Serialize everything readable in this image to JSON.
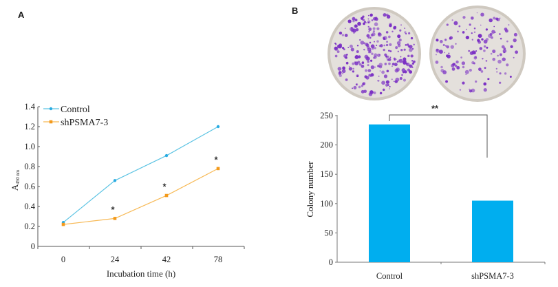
{
  "panels": {
    "a_label": "A",
    "b_label": "B"
  },
  "chart_data": [
    {
      "id": "A",
      "type": "line",
      "title": "",
      "xlabel": "Incubation time (h)",
      "ylabel_main": "A",
      "ylabel_sub": "450 nm",
      "categories": [
        "0",
        "24",
        "42",
        "78"
      ],
      "yticks": [
        "0",
        "0.2",
        "0.4",
        "0.6",
        "0.8",
        "1.0",
        "1.2",
        "1.4"
      ],
      "ylim": [
        0,
        1.4
      ],
      "grid": false,
      "legend_position": "top-left",
      "series": [
        {
          "name": "Control",
          "color": "#5bc3e3",
          "marker_color": "#29abe2",
          "values": [
            0.24,
            0.66,
            0.91,
            1.2
          ]
        },
        {
          "name": "shPSMA7-3",
          "color": "#f7b955",
          "marker_color": "#f39a1c",
          "values": [
            0.22,
            0.28,
            0.51,
            0.78
          ]
        }
      ],
      "annotations": [
        {
          "text": "*",
          "category": "24",
          "y": 0.38
        },
        {
          "text": "*",
          "category": "42",
          "y": 0.61
        },
        {
          "text": "*",
          "category": "78",
          "y": 0.88
        }
      ]
    },
    {
      "id": "B",
      "type": "bar",
      "title": "",
      "xlabel": "",
      "ylabel": "Colony number",
      "categories": [
        "Control",
        "shPSMA7-3"
      ],
      "values": [
        235,
        105
      ],
      "bar_color": "#00aeef",
      "yticks": [
        "0",
        "50",
        "100",
        "150",
        "200",
        "250"
      ],
      "ylim": [
        0,
        250
      ],
      "grid": false,
      "significance": {
        "text": "**",
        "between": [
          "Control",
          "shPSMA7-3"
        ]
      },
      "image_caption": "Colony formation plates (Control, shPSMA7-3)"
    }
  ]
}
